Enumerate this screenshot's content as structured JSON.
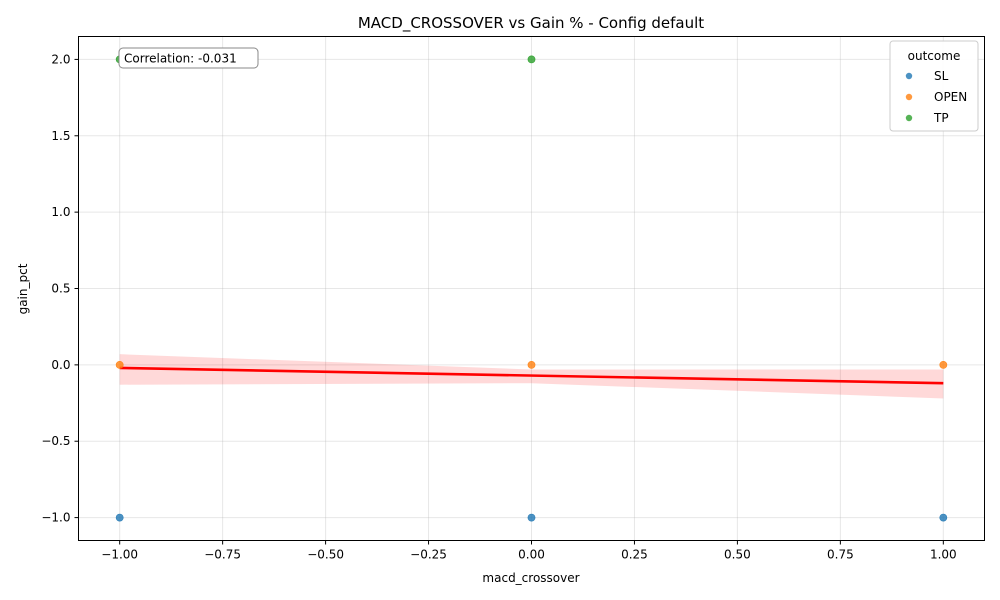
{
  "chart_data": {
    "type": "scatter",
    "title": "MACD_CROSSOVER vs Gain % - Config default",
    "xlabel": "macd_crossover",
    "ylabel": "gain_pct",
    "xlim": [
      -1.1,
      1.1
    ],
    "ylim": [
      -1.15,
      2.15
    ],
    "x_ticks": [
      -1.0,
      -0.75,
      -0.5,
      -0.25,
      0.0,
      0.25,
      0.5,
      0.75,
      1.0
    ],
    "x_tick_labels": [
      "−1.00",
      "−0.75",
      "−0.50",
      "−0.25",
      "0.00",
      "0.25",
      "0.50",
      "0.75",
      "1.00"
    ],
    "y_ticks": [
      -1.0,
      -0.5,
      0.0,
      0.5,
      1.0,
      1.5,
      2.0
    ],
    "y_tick_labels": [
      "−1.0",
      "−0.5",
      "0.0",
      "0.5",
      "1.0",
      "1.5",
      "2.0"
    ],
    "grid": true,
    "legend_position": "top-right",
    "legend_title": "outcome",
    "series": [
      {
        "name": "SL",
        "color": "#1f77b4",
        "points": [
          [
            -1.0,
            -1.0
          ],
          [
            0.0,
            -1.0
          ],
          [
            1.0,
            -1.0
          ]
        ]
      },
      {
        "name": "OPEN",
        "color": "#ff7f0e",
        "points": [
          [
            -1.0,
            0.0
          ],
          [
            0.0,
            0.0
          ],
          [
            1.0,
            0.0
          ]
        ]
      },
      {
        "name": "TP",
        "color": "#2ca02c",
        "points": [
          [
            -1.0,
            2.0
          ],
          [
            0.0,
            2.0
          ]
        ]
      }
    ],
    "regression": {
      "color": "#ff0000",
      "line": [
        [
          -1.0,
          -0.02
        ],
        [
          1.0,
          -0.12
        ]
      ],
      "ci_upper": [
        [
          -1.0,
          0.07
        ],
        [
          0.0,
          -0.03
        ],
        [
          1.0,
          -0.03
        ]
      ],
      "ci_lower": [
        [
          -1.0,
          -0.13
        ],
        [
          0.0,
          -0.12
        ],
        [
          1.0,
          -0.22
        ]
      ]
    },
    "annotation": "Correlation: -0.031"
  }
}
